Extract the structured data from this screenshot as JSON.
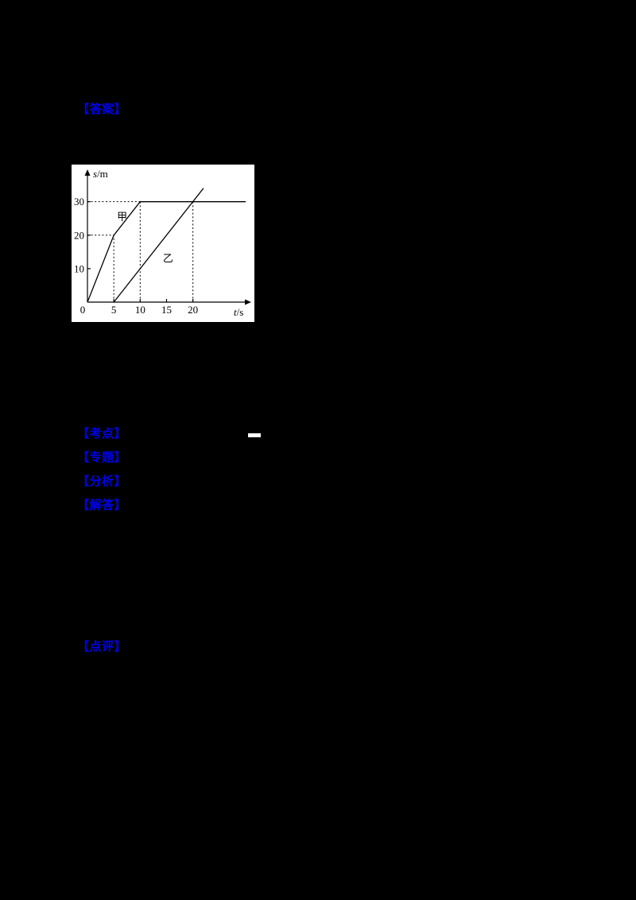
{
  "page": {
    "background": "#000000",
    "accent_blue": "#0000ee"
  },
  "tags": {
    "answer": "【答案】",
    "keypoints": "【考点】",
    "topic": "【专题】",
    "analysis": "【分析】",
    "solution": "【解答】",
    "comment": "【点评】"
  },
  "chart_data": {
    "type": "line",
    "title": "",
    "xlabel": "t/s",
    "ylabel": "s/m",
    "xlim": [
      0,
      30
    ],
    "ylim": [
      0,
      38
    ],
    "x_ticks": [
      0,
      5,
      10,
      15,
      20
    ],
    "y_ticks": [
      10,
      20,
      30
    ],
    "grid": false,
    "legend_position": "inline-labels",
    "series": [
      {
        "name": "甲",
        "points": [
          [
            0,
            0
          ],
          [
            5,
            20
          ],
          [
            10,
            30
          ],
          [
            30,
            30
          ]
        ],
        "label_at": [
          5.6,
          24.5
        ]
      },
      {
        "name": "乙",
        "points": [
          [
            5,
            0
          ],
          [
            22,
            34
          ]
        ],
        "label_at": [
          14.3,
          12
        ]
      }
    ],
    "guides": {
      "h_dotted": [
        {
          "y": 30,
          "x1": 0,
          "x2": 10
        },
        {
          "y": 20,
          "x1": 0,
          "x2": 5
        }
      ],
      "v_dotted": [
        {
          "x": 5,
          "y1": 0,
          "y2": 20
        },
        {
          "x": 10,
          "y1": 0,
          "y2": 30
        },
        {
          "x": 20,
          "y1": 0,
          "y2": 30
        }
      ]
    }
  }
}
